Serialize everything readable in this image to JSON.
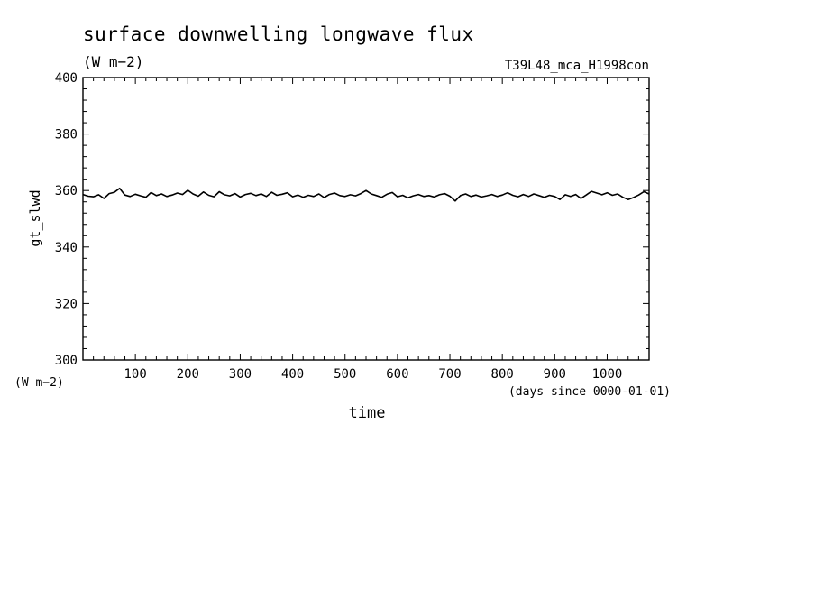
{
  "chart_data": {
    "type": "line",
    "title": "surface downwelling longwave flux",
    "units_label": "(W m−2)",
    "run_label": "T39L48_mca_H1998con",
    "ylabel": "gt_slwd",
    "y_units": "(W m−2)",
    "xlabel": "time",
    "x_units": "(days since 0000-01-01)",
    "xlim": [
      0,
      1080
    ],
    "ylim": [
      300,
      400
    ],
    "x_ticks": [
      100,
      200,
      300,
      400,
      500,
      600,
      700,
      800,
      900,
      1000
    ],
    "y_ticks": [
      300,
      320,
      340,
      360,
      380,
      400
    ],
    "grid": false,
    "series": [
      {
        "x": [
          0,
          10,
          20,
          30,
          40,
          50,
          60,
          70,
          80,
          90,
          100,
          110,
          120,
          130,
          140,
          150,
          160,
          170,
          180,
          190,
          200,
          210,
          220,
          230,
          240,
          250,
          260,
          270,
          280,
          290,
          300,
          310,
          320,
          330,
          340,
          350,
          360,
          370,
          380,
          390,
          400,
          410,
          420,
          430,
          440,
          450,
          460,
          470,
          480,
          490,
          500,
          510,
          520,
          530,
          540,
          550,
          560,
          570,
          580,
          590,
          600,
          610,
          620,
          630,
          640,
          650,
          660,
          670,
          680,
          690,
          700,
          710,
          720,
          730,
          740,
          750,
          760,
          770,
          780,
          790,
          800,
          810,
          820,
          830,
          840,
          850,
          860,
          870,
          880,
          890,
          900,
          910,
          920,
          930,
          940,
          950,
          960,
          970,
          980,
          990,
          1000,
          1010,
          1020,
          1030,
          1040,
          1050,
          1060,
          1070,
          1080
        ],
        "values": [
          358.6,
          358.0,
          357.8,
          358.5,
          357.2,
          358.9,
          359.4,
          360.8,
          358.4,
          357.9,
          358.7,
          358.1,
          357.6,
          359.3,
          358.2,
          358.8,
          357.9,
          358.4,
          359.1,
          358.6,
          360.1,
          358.8,
          358.0,
          359.5,
          358.3,
          357.8,
          359.6,
          358.5,
          358.1,
          358.9,
          357.7,
          358.6,
          359.0,
          358.2,
          358.8,
          357.9,
          359.4,
          358.3,
          358.7,
          359.2,
          357.8,
          358.4,
          357.6,
          358.3,
          357.9,
          358.8,
          357.5,
          358.6,
          359.1,
          358.2,
          357.9,
          358.5,
          358.1,
          358.9,
          360.0,
          358.8,
          358.2,
          357.6,
          358.7,
          359.3,
          357.8,
          358.3,
          357.4,
          358.1,
          358.6,
          357.9,
          358.2,
          357.7,
          358.5,
          358.9,
          358.0,
          356.3,
          358.2,
          358.8,
          357.9,
          358.4,
          357.7,
          358.1,
          358.6,
          357.9,
          358.4,
          359.2,
          358.3,
          357.8,
          358.6,
          357.9,
          358.8,
          358.2,
          357.6,
          358.3,
          357.9,
          356.8,
          358.5,
          357.9,
          358.6,
          357.2,
          358.4,
          359.7,
          359.1,
          358.5,
          359.2,
          358.3,
          358.8,
          357.6,
          356.8,
          357.5,
          358.4,
          359.6,
          358.8
        ]
      }
    ]
  }
}
